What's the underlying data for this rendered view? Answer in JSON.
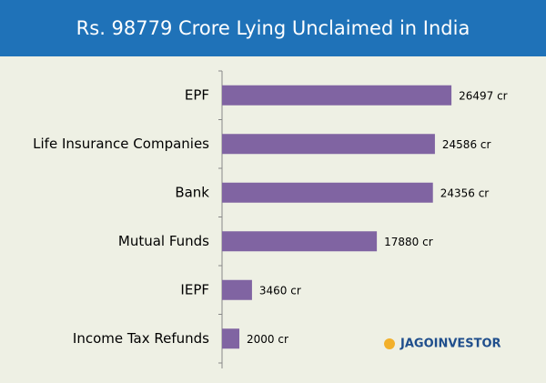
{
  "chart_data": {
    "type": "hbar",
    "title": "Rs. 98779 Crore Lying Unclaimed in India",
    "categories": [
      "EPF",
      "Life Insurance Companies",
      "Bank",
      "Mutual Funds",
      "IEPF",
      "Income Tax Refunds"
    ],
    "values": [
      26497,
      24586,
      24356,
      17880,
      3460,
      2000
    ],
    "value_labels": [
      "26497 cr",
      "24586 cr",
      "24356 cr",
      "17880 cr",
      "3460 cr",
      "2000 cr"
    ],
    "color": "#8064a2",
    "xlim": [
      0,
      35000
    ],
    "watermark": "JAGOINVESTOR"
  }
}
